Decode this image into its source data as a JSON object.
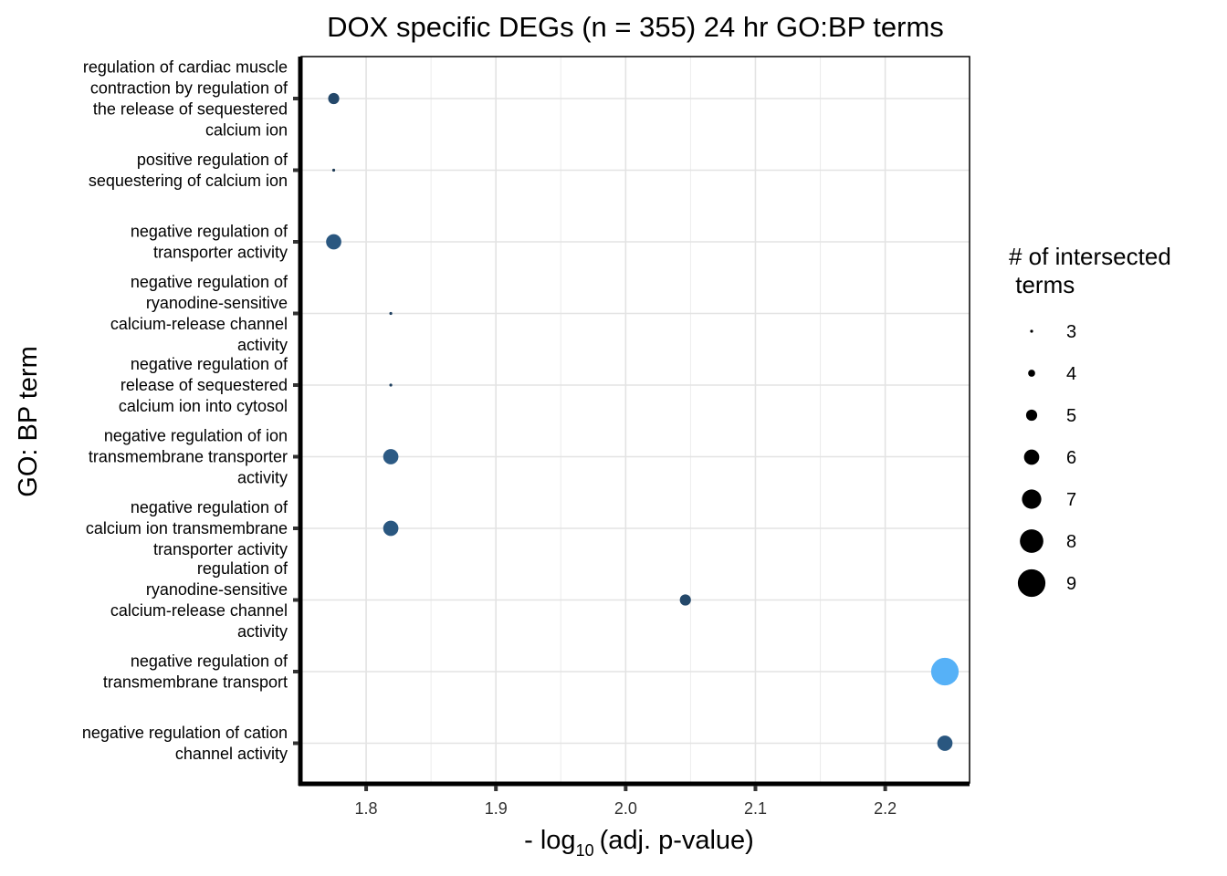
{
  "chart_data": {
    "type": "scatter",
    "title": "DOX specific DEGs (n = 355) 24 hr GO:BP terms",
    "ylabel": "GO: BP term",
    "xlabel": {
      "prefix": "- log",
      "subscript": "10",
      "suffix": "(adj. p-value)"
    },
    "xlim": [
      1.75,
      2.265
    ],
    "x_ticks": [
      1.8,
      1.9,
      2.0,
      2.1,
      2.2
    ],
    "x_tick_labels": [
      "1.8",
      "1.9",
      "2.0",
      "2.1",
      "2.2"
    ],
    "grid": true,
    "legend": {
      "title_lines": [
        "# of intersected",
        " terms"
      ],
      "sizes": [
        3,
        4,
        5,
        6,
        7,
        8,
        9
      ],
      "position": "right"
    },
    "points": [
      {
        "term_lines": [
          "regulation of cardiac muscle",
          "contraction by regulation of",
          "the release of sequestered",
          "calcium ion"
        ],
        "x": 1.775,
        "size": 5,
        "color": "#24486a"
      },
      {
        "term_lines": [
          "positive regulation of",
          "sequestering of calcium ion"
        ],
        "x": 1.775,
        "size": 3,
        "color": "#1d3a54"
      },
      {
        "term_lines": [
          "negative regulation of",
          "transporter activity"
        ],
        "x": 1.775,
        "size": 6,
        "color": "#2a5780"
      },
      {
        "term_lines": [
          "negative regulation of",
          "ryanodine-sensitive",
          "calcium-release channel",
          "activity"
        ],
        "x": 1.819,
        "size": 3,
        "color": "#1f4060"
      },
      {
        "term_lines": [
          "negative regulation of",
          "release of sequestered",
          "calcium ion into cytosol"
        ],
        "x": 1.819,
        "size": 3,
        "color": "#1f4060"
      },
      {
        "term_lines": [
          "negative regulation of ion",
          "transmembrane transporter",
          "activity"
        ],
        "x": 1.819,
        "size": 6,
        "color": "#2c5a84"
      },
      {
        "term_lines": [
          "negative regulation of",
          "calcium ion transmembrane",
          "transporter activity"
        ],
        "x": 1.819,
        "size": 6,
        "color": "#2a5780"
      },
      {
        "term_lines": [
          "regulation of",
          "ryanodine-sensitive",
          "calcium-release channel",
          "activity"
        ],
        "x": 2.046,
        "size": 5,
        "color": "#24486a"
      },
      {
        "term_lines": [
          "negative regulation of",
          "transmembrane transport"
        ],
        "x": 2.246,
        "size": 9,
        "color": "#56b1f7"
      },
      {
        "term_lines": [
          "negative regulation of cation",
          "channel activity"
        ],
        "x": 2.246,
        "size": 6,
        "color": "#2a5780"
      }
    ]
  }
}
